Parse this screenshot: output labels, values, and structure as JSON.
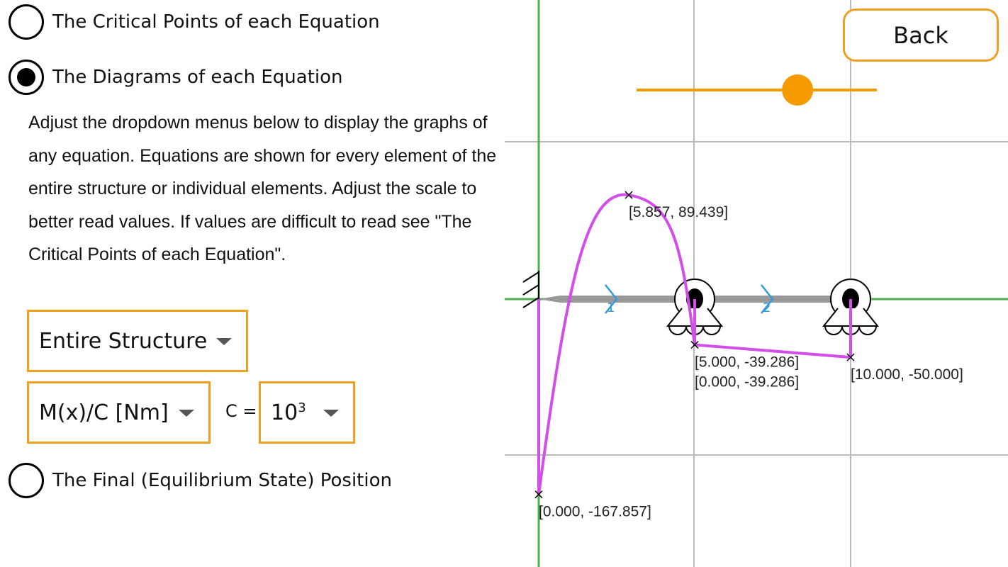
{
  "options": [
    {
      "label": "The Critical Points of each Equation",
      "selected": false
    },
    {
      "label": "The Diagrams of each Equation",
      "selected": true
    },
    {
      "label": "The Final (Equilibrium State) Position",
      "selected": false
    }
  ],
  "description": "Adjust the dropdown menus below to display the graphs of any equation. Equations are shown for every element of the entire structure or individual elements. Adjust the scale to better read values. If values are difficult to read see \"The Critical Points of each Equation\".",
  "dropdowns": {
    "structure": "Entire Structure",
    "quantity": "M(x)/C [Nm]",
    "c_label": "C =",
    "c_base": "10",
    "c_exp": "3"
  },
  "back_label": "Back",
  "slider": {
    "value": 0.67,
    "color": "#f59b00"
  },
  "colors": {
    "accent": "#f0a020",
    "curve": "#d24ee8",
    "axis": "#4caf50",
    "beam": "#999999",
    "element_label": "#3399dd"
  },
  "chart_data": {
    "type": "line",
    "element_labels": [
      "1",
      "2"
    ],
    "supports": [
      {
        "x": 5,
        "type": "roller"
      },
      {
        "x": 10,
        "type": "roller"
      }
    ],
    "fixed_support": {
      "x": 0
    },
    "points": [
      {
        "x": 0,
        "y": 0
      },
      {
        "x": 0,
        "y": -167.857
      },
      {
        "x": 5.857,
        "y": 89.439
      },
      {
        "x": 5,
        "y": -39.286
      },
      {
        "x": 5,
        "y": 0
      },
      {
        "x": 5,
        "y": -39.286
      },
      {
        "x": 10,
        "y": -50
      },
      {
        "x": 10,
        "y": 0
      }
    ],
    "critical_labels": [
      {
        "x": 5.857,
        "y": 89.439,
        "text": "[5.857, 89.439]"
      },
      {
        "x": 5,
        "y": -39.286,
        "text": "[5.000, -39.286]"
      },
      {
        "x": 5,
        "y": -39.286,
        "text": "[0.000, -39.286]"
      },
      {
        "x": 10,
        "y": -50,
        "text": "[10.000, -50.000]"
      },
      {
        "x": 0,
        "y": -167.857,
        "text": "[0.000, -167.857]"
      }
    ]
  }
}
